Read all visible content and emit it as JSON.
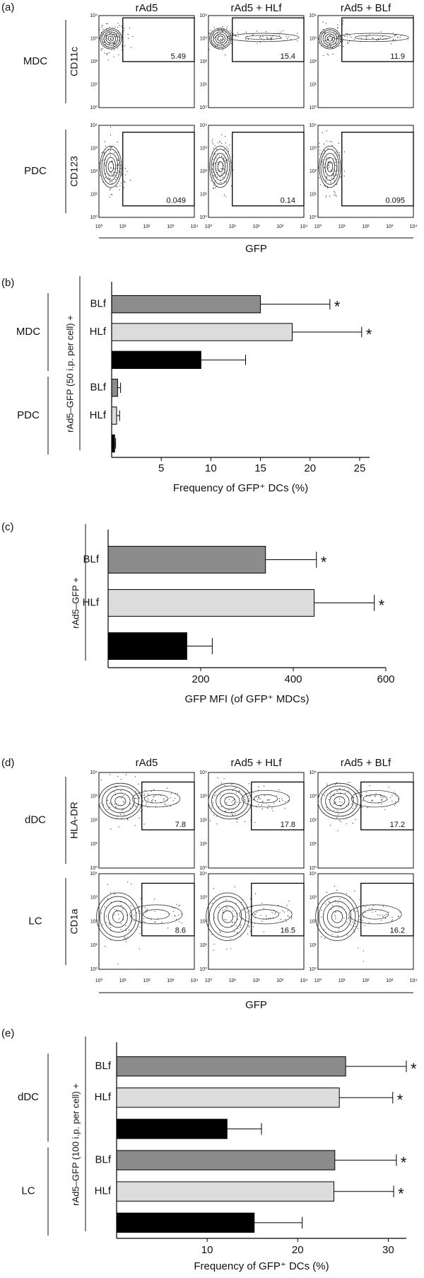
{
  "panel_labels": [
    "(a)",
    "(b)",
    "(c)",
    "(d)",
    "(e)"
  ],
  "flow_a": {
    "columns": [
      "rAd5",
      "rAd5 + HLf",
      "rAd5 + BLf"
    ],
    "rows": [
      {
        "label": "MDC",
        "axis": "CD11c",
        "gates": [
          5.49,
          15.4,
          11.9
        ]
      },
      {
        "label": "PDC",
        "axis": "CD123",
        "gates": [
          0.049,
          0.14,
          0.095
        ]
      }
    ],
    "ticks": [
      "10⁰",
      "10¹",
      "10²",
      "10³",
      "10⁴"
    ],
    "x_label": "GFP"
  },
  "flow_d": {
    "columns": [
      "rAd5",
      "rAd5 + HLf",
      "rAd5 + BLf"
    ],
    "rows": [
      {
        "label": "dDC",
        "axis": "HLA-DR",
        "gates": [
          7.8,
          17.8,
          17.2
        ]
      },
      {
        "label": "LC",
        "axis": "CD1a",
        "gates": [
          8.6,
          16.5,
          16.2
        ]
      }
    ],
    "ticks": [
      "10⁰",
      "10¹",
      "10²",
      "10³",
      "10⁴"
    ],
    "x_label": "GFP"
  },
  "chart_data": [
    {
      "type": "hbar",
      "y_label": "rAd5–GFP (50 i.p. per cell) +",
      "x_label": "Frequency of GFP⁺ DCs (%)",
      "groups": [
        "MDC",
        "PDC"
      ],
      "categories": [
        "BLf",
        "HLf",
        null,
        "BLf",
        "HLf",
        null
      ],
      "values": [
        15,
        18.2,
        9,
        0.6,
        0.5,
        0.3
      ],
      "errors": [
        7,
        7,
        4.5,
        0.3,
        0.3,
        0.1
      ],
      "colors": [
        "#8c8c8c",
        "#dcdcdc",
        "#000000",
        "#8c8c8c",
        "#dcdcdc",
        "#000000"
      ],
      "annotations": [
        "*",
        "*",
        null,
        null,
        null,
        null
      ],
      "xlim": [
        0,
        26
      ],
      "xticks": [
        5,
        10,
        15,
        20,
        25
      ]
    },
    {
      "type": "hbar",
      "y_label": "rAd5–GFP +",
      "x_label": "GFP MFI (of GFP⁺ MDCs)",
      "categories": [
        "BLf",
        "HLf",
        null
      ],
      "values": [
        340,
        445,
        170
      ],
      "errors": [
        110,
        130,
        55
      ],
      "colors": [
        "#8c8c8c",
        "#dcdcdc",
        "#000000"
      ],
      "annotations": [
        "*",
        "*",
        null
      ],
      "xlim": [
        0,
        600
      ],
      "xticks": [
        200,
        400,
        600
      ]
    },
    {
      "type": "hbar",
      "y_label": "rAd5–GFP (100 i.p. per cell) +",
      "x_label": "Frequency of GFP⁺ DCs (%)",
      "groups": [
        "dDC",
        "LC"
      ],
      "categories": [
        "BLf",
        "HLf",
        null,
        "BLf",
        "HLf",
        null
      ],
      "values": [
        25.3,
        24.6,
        12.2,
        24.1,
        24,
        15.2
      ],
      "errors": [
        6.7,
        5.9,
        3.8,
        6.8,
        6.6,
        5.3
      ],
      "colors": [
        "#8c8c8c",
        "#dcdcdc",
        "#000000",
        "#8c8c8c",
        "#dcdcdc",
        "#000000"
      ],
      "annotations": [
        "*",
        "*",
        null,
        "*",
        "*",
        null
      ],
      "xlim": [
        0,
        32
      ],
      "xticks": [
        10,
        20,
        30
      ]
    }
  ]
}
